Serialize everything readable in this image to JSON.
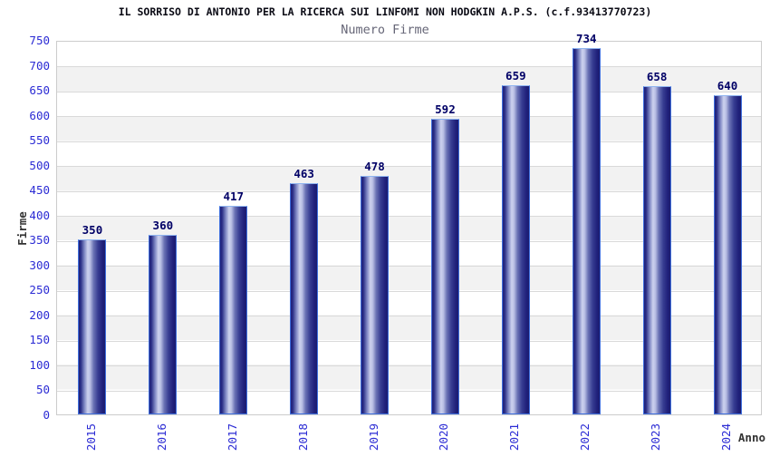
{
  "chart": {
    "title": "IL SORRISO DI ANTONIO PER LA RICERCA SUI LINFOMI NON HODGKIN A.P.S. (c.f.93413770723)",
    "subtitle": "Numero Firme",
    "ylabel": "Firme",
    "xlabel": "Anno"
  },
  "chart_data": {
    "type": "bar",
    "title": "IL SORRISO DI ANTONIO PER LA RICERCA SUI LINFOMI NON HODGKIN A.P.S. (c.f.93413770723)",
    "subtitle": "Numero Firme",
    "xlabel": "Anno",
    "ylabel": "Firme",
    "categories": [
      "2015",
      "2016",
      "2017",
      "2018",
      "2019",
      "2020",
      "2021",
      "2022",
      "2023",
      "2024"
    ],
    "values": [
      350,
      360,
      417,
      463,
      478,
      592,
      659,
      734,
      658,
      640
    ],
    "ylim": [
      0,
      750
    ],
    "ytick_step": 50,
    "grid": true,
    "legend": "none",
    "colors": {
      "bar_dark": "#20217b",
      "bar_light": "#cdd2ee",
      "bar_border": "#3f6fdd",
      "tick_label": "#2b2bd4",
      "value_label": "#000066",
      "band": "#f2f2f2",
      "gridline": "#d9d9d9",
      "plot_border": "#cccccc",
      "title_color": "#0a0a14",
      "subtitle_color": "#666677",
      "axis_label": "#333333"
    }
  }
}
